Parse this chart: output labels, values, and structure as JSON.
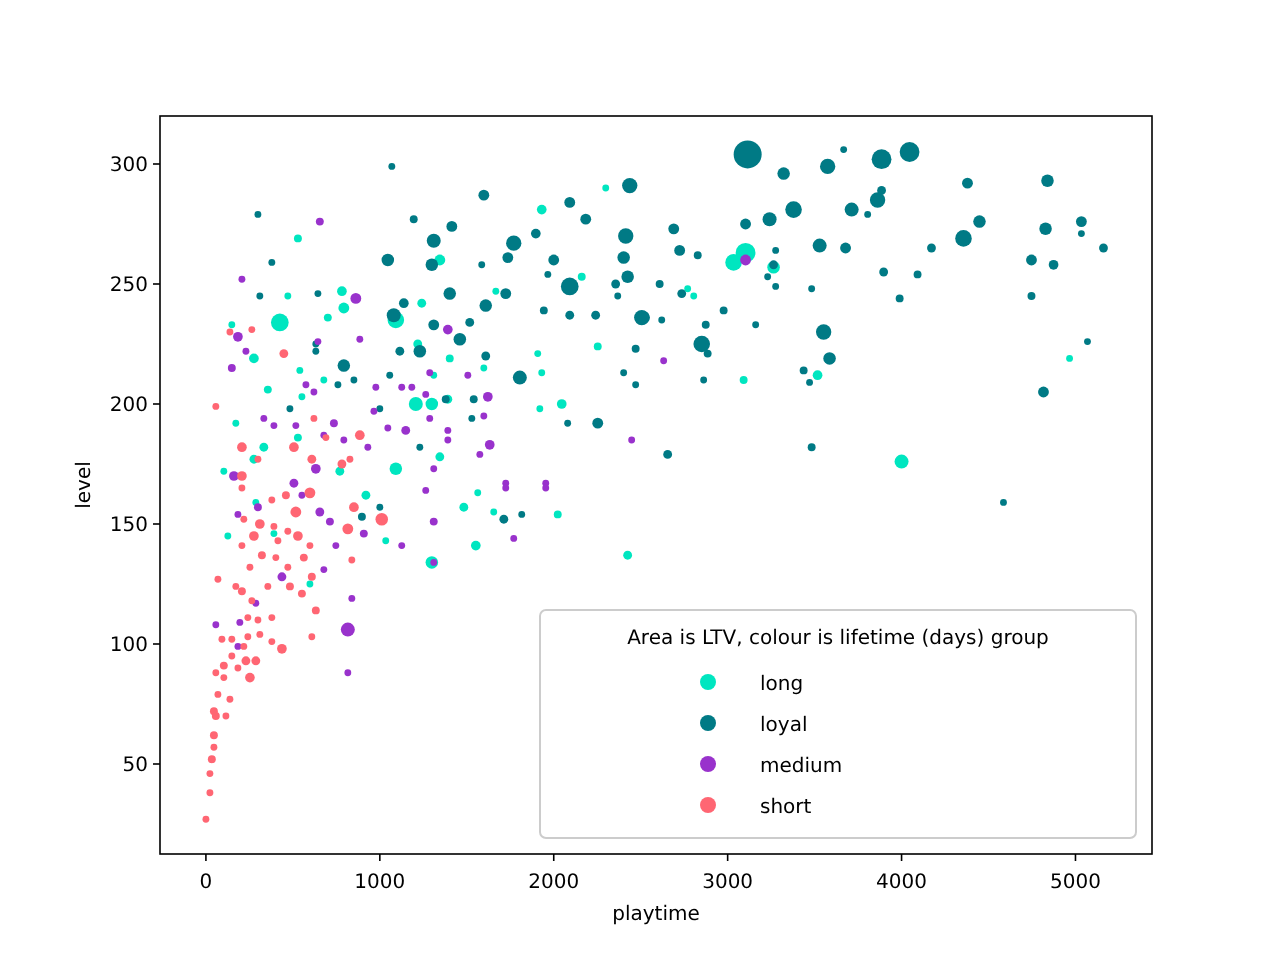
{
  "chart_data": {
    "type": "bubble",
    "xlabel": "playtime",
    "ylabel": "level",
    "legend_title": "Area is LTV, colour is lifetime (days) group",
    "legend": "bottom right",
    "marker": "circle",
    "xlim": [
      -264,
      5440
    ],
    "ylim": [
      12.5,
      320
    ],
    "xticks": [
      0,
      1000,
      2000,
      3000,
      4000,
      5000
    ],
    "yticks": [
      50,
      100,
      150,
      200,
      250,
      300
    ],
    "series": [
      {
        "name": "long",
        "color": "#00e6c0",
        "x": [
          3103,
          3034,
          3264,
          2770,
          2805,
          3092,
          3517,
          4000,
          4966,
          2299,
          1931,
          529,
          471,
          782,
          793,
          701,
          425,
          1092,
          1241,
          1345,
          1667,
          2161,
          1908,
          2253,
          1931,
          2046,
          1920,
          1391,
          1207,
          1299,
          1218,
          1402,
          1310,
          1598,
          276,
          356,
          540,
          678,
          552,
          172,
          333,
          276,
          529,
          770,
          1092,
          1345,
          149,
          103,
          920,
          1483,
          1563,
          1655,
          2023,
          1034,
          1299,
          1552,
          2425,
          598,
          287,
          126,
          391
        ],
        "values": [
          263,
          259,
          257,
          248,
          245,
          210,
          212,
          176,
          219,
          290,
          281,
          269,
          245,
          247,
          240,
          236,
          234,
          235,
          242,
          260,
          247,
          253,
          221,
          224,
          213,
          200,
          198,
          202,
          200,
          200,
          225,
          219,
          212,
          215,
          219,
          206,
          214,
          210,
          203,
          192,
          182,
          177,
          186,
          172,
          173,
          178,
          233,
          172,
          162,
          157,
          163,
          155,
          154,
          143,
          134,
          141,
          137,
          125,
          159,
          145,
          146
        ],
        "sizes": [
          0.5,
          0.35,
          0.2,
          0.06,
          0.06,
          0.08,
          0.12,
          0.25,
          0.06,
          0.06,
          0.12,
          0.08,
          0.06,
          0.12,
          0.15,
          0.08,
          0.4,
          0.35,
          0.1,
          0.15,
          0.06,
          0.08,
          0.06,
          0.08,
          0.06,
          0.12,
          0.06,
          0.1,
          0.25,
          0.2,
          0.1,
          0.08,
          0.06,
          0.06,
          0.12,
          0.08,
          0.06,
          0.06,
          0.06,
          0.06,
          0.1,
          0.1,
          0.08,
          0.1,
          0.2,
          0.1,
          0.06,
          0.06,
          0.1,
          0.1,
          0.06,
          0.06,
          0.08,
          0.06,
          0.2,
          0.12,
          0.1,
          0.06,
          0.06,
          0.06,
          0.06
        ]
      },
      {
        "name": "loyal",
        "color": "#007a85",
        "x": [
          3115,
          4046,
          3885,
          3575,
          3322,
          3667,
          4379,
          4839,
          3379,
          3713,
          3862,
          3885,
          3805,
          4448,
          4356,
          5034,
          5034,
          4828,
          5161,
          4172,
          3103,
          3241,
          2690,
          2724,
          2828,
          3529,
          3678,
          3276,
          4747,
          4874,
          4747,
          3897,
          4092,
          3989,
          3483,
          2609,
          2736,
          2517,
          2621,
          2977,
          2874,
          2851,
          2885,
          3161,
          3552,
          3586,
          3437,
          3471,
          2862,
          5069,
          4816,
          2655,
          3483,
          3264,
          3230,
          3276,
          1069,
          299,
          1598,
          1195,
          1414,
          1310,
          1770,
          1897,
          2092,
          2184,
          2437,
          2414,
          2402,
          2425,
          2506,
          2092,
          2000,
          1736,
          1299,
          1046,
          1586,
          1402,
          1609,
          1724,
          1080,
          1138,
          1517,
          1310,
          1460,
          1230,
          1115,
          1609,
          793,
          1057,
          1805,
          2092,
          1943,
          2241,
          2356,
          2368,
          2471,
          2402,
          2471,
          1379,
          1540,
          2253,
          759,
          851,
          483,
          644,
          310,
          632,
          632,
          379,
          2080,
          1230,
          1000,
          1529,
          1966,
          897,
          1000,
          1713,
          1816,
          4586
        ],
        "values": [
          304,
          305,
          302,
          299,
          296,
          306,
          292,
          293,
          281,
          281,
          285,
          289,
          279,
          276,
          269,
          276,
          271,
          273,
          265,
          265,
          275,
          277,
          273,
          264,
          262,
          266,
          265,
          264,
          260,
          258,
          245,
          255,
          254,
          244,
          248,
          250,
          246,
          236,
          235,
          239,
          233,
          225,
          221,
          233,
          230,
          219,
          214,
          209,
          210,
          226,
          205,
          179,
          182,
          258,
          253,
          249,
          299,
          279,
          287,
          277,
          274,
          268,
          267,
          271,
          284,
          277,
          291,
          270,
          261,
          253,
          236,
          249,
          260,
          261,
          258,
          260,
          258,
          246,
          241,
          246,
          237,
          242,
          234,
          233,
          227,
          222,
          222,
          220,
          216,
          212,
          211,
          237,
          239,
          237,
          250,
          245,
          223,
          213,
          208,
          202,
          202,
          192,
          208,
          210,
          198,
          246,
          245,
          225,
          222,
          259,
          192,
          182,
          198,
          194,
          254,
          153,
          157,
          152,
          154,
          159
        ],
        "sizes": [
          1,
          0.5,
          0.5,
          0.3,
          0.2,
          0.06,
          0.15,
          0.2,
          0.35,
          0.25,
          0.3,
          0.1,
          0.06,
          0.2,
          0.35,
          0.15,
          0.06,
          0.2,
          0.1,
          0.1,
          0.15,
          0.25,
          0.15,
          0.15,
          0.08,
          0.25,
          0.15,
          0.06,
          0.15,
          0.12,
          0.08,
          0.1,
          0.08,
          0.08,
          0.06,
          0.08,
          0.1,
          0.2,
          0.06,
          0.08,
          0.08,
          0.35,
          0.08,
          0.06,
          0.3,
          0.2,
          0.08,
          0.06,
          0.06,
          0.06,
          0.15,
          0.1,
          0.08,
          0.1,
          0.06,
          0.06,
          0.06,
          0.06,
          0.15,
          0.08,
          0.15,
          0.25,
          0.3,
          0.12,
          0.15,
          0.15,
          0.3,
          0.3,
          0.2,
          0.2,
          0.3,
          0.4,
          0.15,
          0.15,
          0.2,
          0.2,
          0.06,
          0.2,
          0.2,
          0.15,
          0.25,
          0.12,
          0.1,
          0.15,
          0.2,
          0.2,
          0.1,
          0.1,
          0.2,
          0.06,
          0.25,
          0.1,
          0.08,
          0.1,
          0.1,
          0.06,
          0.08,
          0.06,
          0.06,
          0.08,
          0.08,
          0.15,
          0.06,
          0.06,
          0.06,
          0.06,
          0.06,
          0.06,
          0.06,
          0.06,
          0.06,
          0.06,
          0.06,
          0.06,
          0.06,
          0.08,
          0.06,
          0.1,
          0.06,
          0.06
        ]
      },
      {
        "name": "medium",
        "color": "#9932cc",
        "x": [
          655,
          207,
          862,
          184,
          230,
          149,
          644,
          885,
          1391,
          575,
          621,
          977,
          1126,
          1184,
          1287,
          1506,
          1621,
          1264,
          966,
          1287,
          1598,
          333,
          391,
          517,
          736,
          678,
          793,
          632,
          506,
          161,
          1149,
          1046,
          1391,
          1391,
          1632,
          1575,
          1310,
          931,
          2448,
          1724,
          1954,
          2632,
          3103,
          299,
          184,
          655,
          713,
          552,
          908,
          1126,
          1310,
          1264,
          1724,
          1954,
          1770,
          1310,
          437,
          678,
          287,
          839,
          57,
          195,
          816,
          816,
          184,
          747
        ],
        "values": [
          276,
          252,
          244,
          228,
          222,
          215,
          226,
          227,
          231,
          208,
          205,
          207,
          207,
          207,
          213,
          212,
          203,
          204,
          197,
          194,
          195,
          194,
          191,
          191,
          192,
          187,
          185,
          173,
          167,
          170,
          189,
          190,
          189,
          185,
          183,
          179,
          173,
          182,
          185,
          167,
          167,
          218,
          260,
          157,
          154,
          155,
          151,
          162,
          146,
          141,
          151,
          164,
          165,
          165,
          144,
          134,
          128,
          131,
          117,
          119,
          108,
          109,
          106,
          88,
          99,
          141
        ],
        "sizes": [
          0.08,
          0.06,
          0.15,
          0.12,
          0.06,
          0.08,
          0.06,
          0.06,
          0.12,
          0.06,
          0.06,
          0.06,
          0.06,
          0.06,
          0.06,
          0.06,
          0.12,
          0.06,
          0.06,
          0.06,
          0.06,
          0.06,
          0.06,
          0.06,
          0.08,
          0.06,
          0.06,
          0.12,
          0.1,
          0.12,
          0.1,
          0.06,
          0.06,
          0.06,
          0.12,
          0.06,
          0.06,
          0.06,
          0.06,
          0.06,
          0.06,
          0.06,
          0.15,
          0.08,
          0.06,
          0.1,
          0.08,
          0.06,
          0.08,
          0.06,
          0.08,
          0.06,
          0.06,
          0.06,
          0.06,
          0.06,
          0.1,
          0.06,
          0.06,
          0.06,
          0.06,
          0.06,
          0.25,
          0.06,
          0.06,
          0.06
        ]
      },
      {
        "name": "short",
        "color": "#ff6673",
        "x": [
          0,
          23,
          23,
          34,
          46,
          46,
          57,
          46,
          115,
          138,
          69,
          103,
          57,
          103,
          149,
          253,
          184,
          230,
          287,
          218,
          149,
          92,
          241,
          310,
          379,
          437,
          609,
          632,
          552,
          483,
          379,
          299,
          241,
          207,
          264,
          69,
          172,
          253,
          356,
          322,
          402,
          471,
          563,
          609,
          839,
          207,
          276,
          414,
          529,
          598,
          471,
          391,
          310,
          218,
          517,
          816,
          1011,
          851,
          598,
          460,
          379,
          207,
          57,
          138,
          264,
          448,
          621,
          690,
          207,
          506,
          885,
          609,
          828,
          782,
          299,
          207
        ],
        "values": [
          27,
          38,
          46,
          52,
          57,
          62,
          70,
          72,
          70,
          77,
          79,
          86,
          88,
          91,
          95,
          86,
          90,
          93,
          93,
          99,
          102,
          102,
          103,
          104,
          101,
          98,
          103,
          114,
          121,
          124,
          111,
          110,
          111,
          122,
          118,
          127,
          124,
          132,
          124,
          137,
          136,
          132,
          136,
          128,
          135,
          141,
          145,
          143,
          145,
          141,
          147,
          149,
          150,
          152,
          155,
          148,
          152,
          157,
          163,
          162,
          160,
          165,
          199,
          230,
          231,
          221,
          194,
          186,
          182,
          182,
          187,
          177,
          177,
          175,
          177,
          170
        ],
        "sizes": [
          0.06,
          0.06,
          0.06,
          0.08,
          0.06,
          0.08,
          0.08,
          0.08,
          0.06,
          0.06,
          0.06,
          0.06,
          0.06,
          0.08,
          0.06,
          0.12,
          0.06,
          0.1,
          0.1,
          0.06,
          0.06,
          0.06,
          0.06,
          0.06,
          0.06,
          0.12,
          0.06,
          0.08,
          0.08,
          0.08,
          0.06,
          0.06,
          0.06,
          0.08,
          0.06,
          0.06,
          0.06,
          0.06,
          0.06,
          0.08,
          0.06,
          0.06,
          0.08,
          0.08,
          0.06,
          0.06,
          0.12,
          0.06,
          0.12,
          0.06,
          0.06,
          0.06,
          0.12,
          0.06,
          0.15,
          0.15,
          0.2,
          0.12,
          0.15,
          0.08,
          0.06,
          0.06,
          0.06,
          0.06,
          0.06,
          0.1,
          0.06,
          0.06,
          0.12,
          0.12,
          0.12,
          0.1,
          0.06,
          0.1,
          0.06,
          0.12
        ]
      }
    ]
  }
}
